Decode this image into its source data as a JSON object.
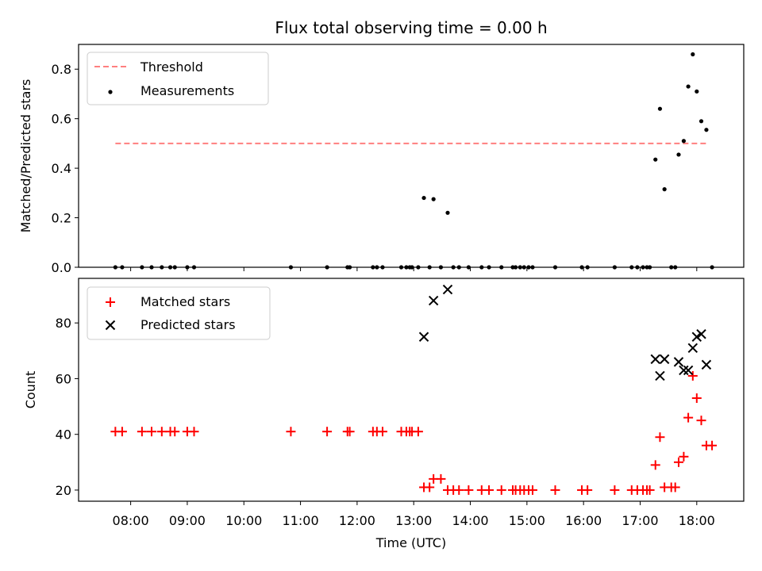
{
  "chart_data": [
    {
      "type": "scatter",
      "title": "Flux total observing time = 0.00 h",
      "xlabel": "",
      "ylabel": "Matched/Predicted stars",
      "xlim": [
        7.08,
        18.83
      ],
      "ylim": [
        0,
        0.9
      ],
      "yticks": [
        0.0,
        0.2,
        0.4,
        0.6,
        0.8
      ],
      "yticklabels": [
        "0.0",
        "0.2",
        "0.4",
        "0.6",
        "0.8"
      ],
      "legend_position": "top-left",
      "grid": false,
      "threshold": {
        "name": "Threshold",
        "value": 0.5,
        "x_range": [
          7.73,
          18.2
        ],
        "color": "#ff7f7f"
      },
      "series": [
        {
          "name": "Measurements",
          "color": "#000000",
          "points": [
            [
              7.73,
              0.0
            ],
            [
              7.85,
              0.0
            ],
            [
              8.2,
              0.0
            ],
            [
              8.37,
              0.0
            ],
            [
              8.55,
              0.0
            ],
            [
              8.7,
              0.0
            ],
            [
              8.78,
              0.0
            ],
            [
              9.0,
              0.0
            ],
            [
              9.12,
              0.0
            ],
            [
              10.83,
              0.0
            ],
            [
              11.47,
              0.0
            ],
            [
              11.83,
              0.0
            ],
            [
              11.87,
              0.0
            ],
            [
              12.28,
              0.0
            ],
            [
              12.35,
              0.0
            ],
            [
              12.45,
              0.0
            ],
            [
              12.78,
              0.0
            ],
            [
              12.87,
              0.0
            ],
            [
              12.93,
              0.0
            ],
            [
              12.97,
              0.0
            ],
            [
              13.08,
              0.0
            ],
            [
              13.18,
              0.28
            ],
            [
              13.28,
              0.0
            ],
            [
              13.35,
              0.275
            ],
            [
              13.48,
              0.0
            ],
            [
              13.6,
              0.22
            ],
            [
              13.7,
              0.0
            ],
            [
              13.8,
              0.0
            ],
            [
              13.97,
              0.0
            ],
            [
              14.2,
              0.0
            ],
            [
              14.33,
              0.0
            ],
            [
              14.55,
              0.0
            ],
            [
              14.75,
              0.0
            ],
            [
              14.8,
              0.0
            ],
            [
              14.88,
              0.0
            ],
            [
              14.95,
              0.0
            ],
            [
              15.03,
              0.0
            ],
            [
              15.1,
              0.0
            ],
            [
              15.5,
              0.0
            ],
            [
              15.97,
              0.0
            ],
            [
              16.07,
              0.0
            ],
            [
              16.55,
              0.0
            ],
            [
              16.85,
              0.0
            ],
            [
              16.95,
              0.0
            ],
            [
              17.05,
              0.0
            ],
            [
              17.12,
              0.0
            ],
            [
              17.17,
              0.0
            ],
            [
              17.27,
              0.435
            ],
            [
              17.35,
              0.64
            ],
            [
              17.43,
              0.315
            ],
            [
              17.55,
              0.0
            ],
            [
              17.62,
              0.0
            ],
            [
              17.68,
              0.455
            ],
            [
              17.77,
              0.51
            ],
            [
              17.85,
              0.73
            ],
            [
              17.93,
              0.86
            ],
            [
              18.0,
              0.71
            ],
            [
              18.08,
              0.59
            ],
            [
              18.17,
              0.555
            ],
            [
              18.27,
              0.0
            ]
          ]
        }
      ]
    },
    {
      "type": "scatter",
      "title": "",
      "xlabel": "Time (UTC)",
      "ylabel": "Count",
      "xlim": [
        7.08,
        18.83
      ],
      "ylim": [
        16,
        96
      ],
      "yticks": [
        20,
        40,
        60,
        80
      ],
      "yticklabels": [
        "20",
        "40",
        "60",
        "80"
      ],
      "xticks": [
        8,
        9,
        10,
        11,
        12,
        13,
        14,
        15,
        16,
        17,
        18
      ],
      "xticklabels": [
        "08:00",
        "09:00",
        "10:00",
        "11:00",
        "12:00",
        "13:00",
        "14:00",
        "15:00",
        "16:00",
        "17:00",
        "18:00"
      ],
      "legend_position": "top-left",
      "grid": false,
      "series": [
        {
          "name": "Matched stars",
          "color": "#ff0000",
          "marker": "plus",
          "points": [
            [
              7.73,
              41
            ],
            [
              7.85,
              41
            ],
            [
              8.2,
              41
            ],
            [
              8.37,
              41
            ],
            [
              8.55,
              41
            ],
            [
              8.7,
              41
            ],
            [
              8.78,
              41
            ],
            [
              9.0,
              41
            ],
            [
              9.12,
              41
            ],
            [
              10.83,
              41
            ],
            [
              11.47,
              41
            ],
            [
              11.83,
              41
            ],
            [
              11.87,
              41
            ],
            [
              12.28,
              41
            ],
            [
              12.35,
              41
            ],
            [
              12.45,
              41
            ],
            [
              12.78,
              41
            ],
            [
              12.87,
              41
            ],
            [
              12.93,
              41
            ],
            [
              12.97,
              41
            ],
            [
              13.08,
              41
            ],
            [
              13.18,
              21
            ],
            [
              13.28,
              21
            ],
            [
              13.35,
              24
            ],
            [
              13.48,
              24
            ],
            [
              13.6,
              20
            ],
            [
              13.7,
              20
            ],
            [
              13.8,
              20
            ],
            [
              13.97,
              20
            ],
            [
              14.2,
              20
            ],
            [
              14.33,
              20
            ],
            [
              14.55,
              20
            ],
            [
              14.75,
              20
            ],
            [
              14.8,
              20
            ],
            [
              14.88,
              20
            ],
            [
              14.95,
              20
            ],
            [
              15.03,
              20
            ],
            [
              15.1,
              20
            ],
            [
              15.5,
              20
            ],
            [
              15.97,
              20
            ],
            [
              16.07,
              20
            ],
            [
              16.55,
              20
            ],
            [
              16.85,
              20
            ],
            [
              16.95,
              20
            ],
            [
              17.05,
              20
            ],
            [
              17.12,
              20
            ],
            [
              17.17,
              20
            ],
            [
              17.27,
              29
            ],
            [
              17.35,
              39
            ],
            [
              17.43,
              21
            ],
            [
              17.55,
              21
            ],
            [
              17.62,
              21
            ],
            [
              17.68,
              30
            ],
            [
              17.77,
              32
            ],
            [
              17.85,
              46
            ],
            [
              17.93,
              61
            ],
            [
              18.0,
              53
            ],
            [
              18.08,
              45
            ],
            [
              18.17,
              36
            ],
            [
              18.27,
              36
            ]
          ]
        },
        {
          "name": "Predicted stars",
          "color": "#000000",
          "marker": "x",
          "points": [
            [
              13.18,
              75
            ],
            [
              13.35,
              88
            ],
            [
              13.6,
              92
            ],
            [
              17.27,
              67
            ],
            [
              17.35,
              61
            ],
            [
              17.43,
              67
            ],
            [
              17.68,
              66
            ],
            [
              17.77,
              63
            ],
            [
              17.85,
              63
            ],
            [
              17.93,
              71
            ],
            [
              18.0,
              75
            ],
            [
              18.08,
              76
            ],
            [
              18.17,
              65
            ]
          ]
        }
      ]
    }
  ]
}
